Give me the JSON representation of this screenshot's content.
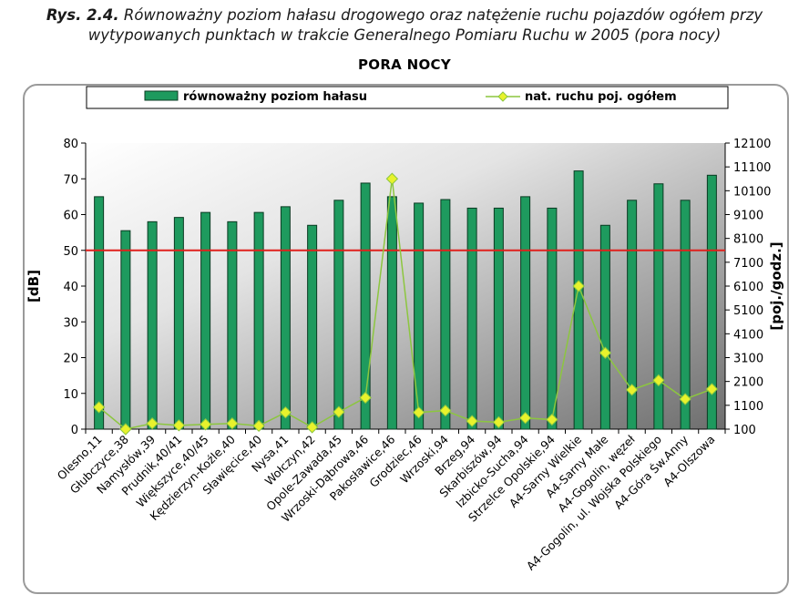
{
  "caption": {
    "label": "Rys. 2.4.",
    "line1": "Równoważny poziom hałasu drogowego oraz natężenie ruchu pojazdów ogółem przy",
    "line2": "wytypowanych punktach w trakcie Generalnego Pomiaru Ruchu w 2005 (pora nocy)"
  },
  "colors": {
    "bar_fill": "#1e9a5e",
    "bar_stroke": "#0a3a22",
    "line": "#8cc63f",
    "marker": "#e8f22c",
    "threshold": "#e0201c"
  },
  "chart_data": {
    "type": "bar",
    "title": "PORA NOCY",
    "ylabel": "[dB]",
    "y2label": "[poj./godz.]",
    "ylim": [
      0,
      80
    ],
    "y2lim": [
      100,
      12100
    ],
    "yticks": [
      0,
      10,
      20,
      30,
      40,
      50,
      60,
      70,
      80
    ],
    "y2ticks": [
      100,
      1100,
      2100,
      3100,
      4100,
      5100,
      6100,
      7100,
      8100,
      9100,
      10100,
      11100,
      12100
    ],
    "threshold": 50,
    "legend": {
      "position": "top",
      "bar_label": "równoważny poziom hałasu",
      "line_label": "nat. ruchu poj. ogółem"
    },
    "categories": [
      "Olesno,11",
      "Głubczyce,38",
      "Namysłów,39",
      "Prudnik,40/41",
      "Większyce,40/45",
      "Kędzierzyn-Koźle,40",
      "Sławięcice,40",
      "Nysa,41",
      "Wołczyn,42",
      "Opole-Zawada,45",
      "Wrzoski-Dąbrowa,46",
      "Pakosławice,46",
      "Grodziec,46",
      "Wrzoski,94",
      "Brzeg,94",
      "Skarbiszów,94",
      "Izbicko-Sucha,94",
      "Strzelce Opolskie,94",
      "A4-Sarny Wielkie",
      "A4-Sarny Małe",
      "A4-Gogolin, węzeł",
      "A4-Gogolin, ul. Wojska Polskiego",
      "A4-Góra Św.Anny",
      "A4-Olszowa"
    ],
    "series": [
      {
        "name": "równoważny poziom hałasu",
        "axis": "left",
        "kind": "bar",
        "values": [
          65,
          55.5,
          58,
          59.2,
          60.6,
          58,
          60.6,
          62.2,
          57,
          64,
          68.8,
          65,
          63.2,
          64.2,
          61.8,
          61.8,
          65,
          61.8,
          72.2,
          57,
          64,
          68.6,
          64,
          71
        ]
      },
      {
        "name": "nat. ruchu poj. ogółem",
        "axis": "right",
        "kind": "line",
        "values": [
          1020,
          100,
          340,
          260,
          300,
          340,
          240,
          800,
          180,
          820,
          1420,
          10600,
          800,
          880,
          440,
          390,
          570,
          500,
          6100,
          3300,
          1750,
          2150,
          1360,
          1780
        ]
      }
    ]
  }
}
